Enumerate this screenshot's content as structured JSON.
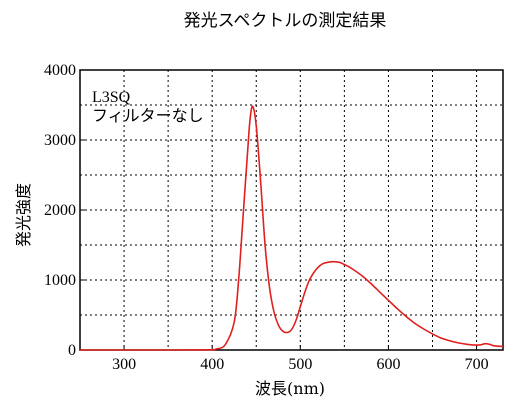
{
  "chart_data": {
    "type": "line",
    "title": "発光スペクトルの測定結果",
    "xlabel": "波長(nm)",
    "ylabel": "発光強度",
    "xlim": [
      250,
      730
    ],
    "ylim": [
      0,
      4000
    ],
    "x_ticks": [
      300,
      400,
      500,
      600,
      700
    ],
    "y_ticks": [
      0,
      1000,
      2000,
      3000,
      4000
    ],
    "grid": true,
    "annotations": [
      "L3SQ",
      "フィルターなし"
    ],
    "series": [
      {
        "color": "#e0201e",
        "x": [
          250,
          300,
          350,
          395,
          405,
          415,
          425,
          430,
          435,
          440,
          443,
          446,
          450,
          455,
          460,
          465,
          470,
          475,
          480,
          485,
          490,
          495,
          500,
          505,
          510,
          515,
          520,
          525,
          530,
          535,
          540,
          545,
          550,
          555,
          560,
          570,
          580,
          590,
          600,
          610,
          620,
          630,
          640,
          650,
          660,
          670,
          680,
          690,
          700,
          705,
          710,
          715,
          720,
          725,
          730
        ],
        "y": [
          0,
          0,
          0,
          2,
          15,
          80,
          400,
          1000,
          1900,
          2800,
          3300,
          3480,
          3200,
          2400,
          1500,
          900,
          550,
          360,
          270,
          250,
          290,
          420,
          620,
          820,
          990,
          1100,
          1180,
          1230,
          1250,
          1260,
          1260,
          1250,
          1220,
          1190,
          1150,
          1060,
          950,
          830,
          710,
          590,
          480,
          380,
          300,
          230,
          170,
          130,
          100,
          80,
          70,
          75,
          90,
          80,
          60,
          55,
          50
        ]
      }
    ]
  }
}
